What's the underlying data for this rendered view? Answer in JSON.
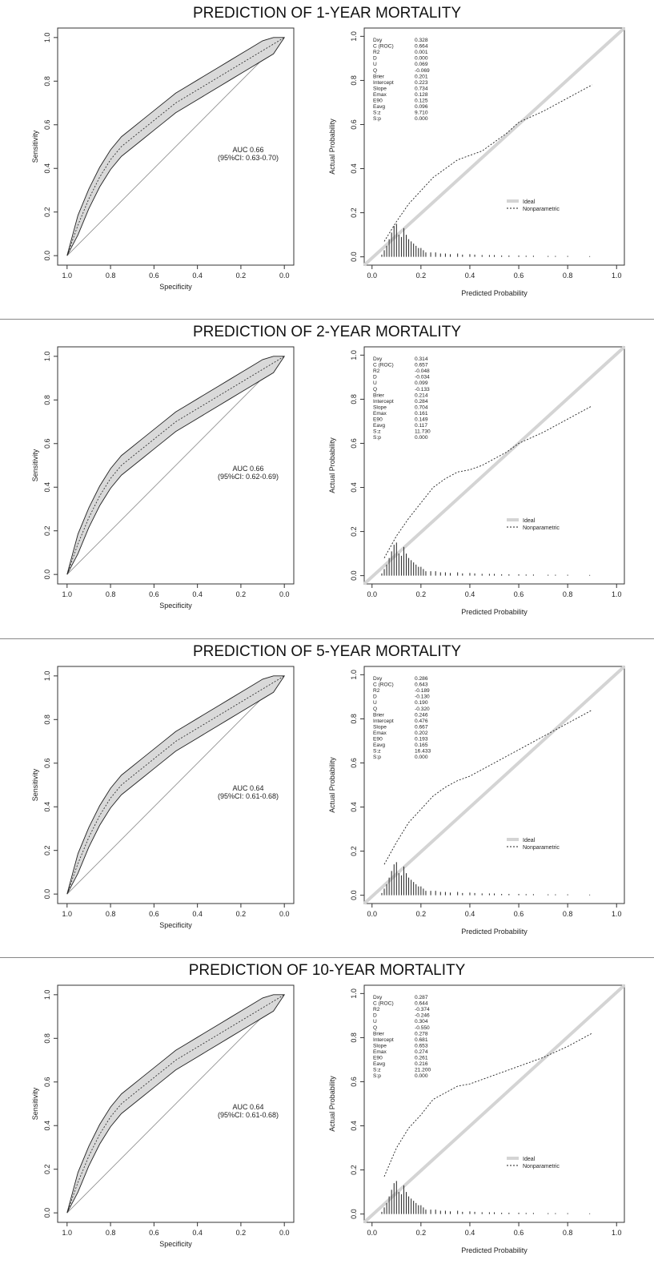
{
  "panels": [
    {
      "title": "PREDICTION OF 1-YEAR MORTALITY",
      "roc": {
        "auc_label": "AUC 0.66",
        "ci_label": "(95%CI: 0.63-0.70)"
      },
      "stats": [
        [
          "Dxy",
          "0.328"
        ],
        [
          "C (ROC)",
          "0.664"
        ],
        [
          "R2",
          "0.001"
        ],
        [
          "D",
          "0.000"
        ],
        [
          "U",
          "0.069"
        ],
        [
          "Q",
          "-0.069"
        ],
        [
          "Brier",
          "0.201"
        ],
        [
          "Intercept",
          "0.223"
        ],
        [
          "Slope",
          "0.734"
        ],
        [
          "Emax",
          "0.128"
        ],
        [
          "E90",
          "0.125"
        ],
        [
          "Eavg",
          "0.096"
        ],
        [
          "S:z",
          "9.710"
        ],
        [
          "S:p",
          "0.000"
        ]
      ],
      "calibration": {
        "pred": [
          0.05,
          0.1,
          0.15,
          0.2,
          0.25,
          0.3,
          0.35,
          0.4,
          0.45,
          0.5,
          0.55,
          0.6,
          0.7,
          0.8,
          0.9
        ],
        "actual": [
          0.07,
          0.16,
          0.24,
          0.3,
          0.36,
          0.4,
          0.44,
          0.46,
          0.48,
          0.52,
          0.56,
          0.61,
          0.66,
          0.72,
          0.78
        ]
      }
    },
    {
      "title": "PREDICTION OF 2-YEAR MORTALITY",
      "roc": {
        "auc_label": "AUC 0.66",
        "ci_label": "(95%CI: 0.62-0.69)"
      },
      "stats": [
        [
          "Dxy",
          "0.314"
        ],
        [
          "C (ROC)",
          "0.657"
        ],
        [
          "R2",
          "-0.048"
        ],
        [
          "D",
          "-0.034"
        ],
        [
          "U",
          "0.099"
        ],
        [
          "Q",
          "-0.133"
        ],
        [
          "Brier",
          "0.214"
        ],
        [
          "Intercept",
          "0.284"
        ],
        [
          "Slope",
          "0.704"
        ],
        [
          "Emax",
          "0.161"
        ],
        [
          "E90",
          "0.149"
        ],
        [
          "Eavg",
          "0.117"
        ],
        [
          "S:z",
          "11.730"
        ],
        [
          "S:p",
          "0.000"
        ]
      ],
      "calibration": {
        "pred": [
          0.05,
          0.1,
          0.15,
          0.2,
          0.25,
          0.3,
          0.35,
          0.4,
          0.45,
          0.5,
          0.55,
          0.6,
          0.7,
          0.8,
          0.9
        ],
        "actual": [
          0.08,
          0.18,
          0.26,
          0.33,
          0.4,
          0.44,
          0.47,
          0.48,
          0.5,
          0.53,
          0.56,
          0.6,
          0.65,
          0.71,
          0.77
        ]
      }
    },
    {
      "title": "PREDICTION OF 5-YEAR MORTALITY",
      "roc": {
        "auc_label": "AUC 0.64",
        "ci_label": "(95%CI: 0.61-0.68)"
      },
      "stats": [
        [
          "Dxy",
          "0.286"
        ],
        [
          "C (ROC)",
          "0.643"
        ],
        [
          "R2",
          "-0.189"
        ],
        [
          "D",
          "-0.130"
        ],
        [
          "U",
          "0.190"
        ],
        [
          "Q",
          "-0.320"
        ],
        [
          "Brier",
          "0.246"
        ],
        [
          "Intercept",
          "0.476"
        ],
        [
          "Slope",
          "0.667"
        ],
        [
          "Emax",
          "0.202"
        ],
        [
          "E90",
          "0.193"
        ],
        [
          "Eavg",
          "0.165"
        ],
        [
          "S:z",
          "16.433"
        ],
        [
          "S:p",
          "0.000"
        ]
      ],
      "calibration": {
        "pred": [
          0.05,
          0.1,
          0.15,
          0.2,
          0.25,
          0.3,
          0.35,
          0.4,
          0.45,
          0.5,
          0.55,
          0.6,
          0.7,
          0.8,
          0.9
        ],
        "actual": [
          0.14,
          0.24,
          0.33,
          0.39,
          0.45,
          0.49,
          0.52,
          0.54,
          0.57,
          0.6,
          0.63,
          0.66,
          0.72,
          0.78,
          0.84
        ]
      }
    },
    {
      "title": "PREDICTION OF 10-YEAR MORTALITY",
      "roc": {
        "auc_label": "AUC 0.64",
        "ci_label": "(95%CI: 0.61-0.68)"
      },
      "stats": [
        [
          "Dxy",
          "0.287"
        ],
        [
          "C (ROC)",
          "0.644"
        ],
        [
          "R2",
          "-0.374"
        ],
        [
          "D",
          "-0.246"
        ],
        [
          "U",
          "0.304"
        ],
        [
          "Q",
          "-0.550"
        ],
        [
          "Brier",
          "0.278"
        ],
        [
          "Intercept",
          "0.681"
        ],
        [
          "Slope",
          "0.653"
        ],
        [
          "Emax",
          "0.274"
        ],
        [
          "E90",
          "0.261"
        ],
        [
          "Eavg",
          "0.216"
        ],
        [
          "S:z",
          "21.200"
        ],
        [
          "S:p",
          "0.000"
        ]
      ],
      "calibration": {
        "pred": [
          0.05,
          0.1,
          0.15,
          0.2,
          0.25,
          0.3,
          0.35,
          0.4,
          0.45,
          0.5,
          0.55,
          0.6,
          0.7,
          0.8,
          0.9
        ],
        "actual": [
          0.17,
          0.3,
          0.39,
          0.45,
          0.52,
          0.55,
          0.58,
          0.59,
          0.61,
          0.63,
          0.65,
          0.67,
          0.71,
          0.76,
          0.82
        ]
      }
    }
  ],
  "roc_axes": {
    "xlabel": "Specificity",
    "ylabel": "Sensitivity",
    "xticks": [
      "1.0",
      "0.8",
      "0.6",
      "0.4",
      "0.2",
      "0.0"
    ],
    "yticks": [
      "0.0",
      "0.2",
      "0.4",
      "0.6",
      "0.8",
      "1.0"
    ]
  },
  "cal_axes": {
    "xlabel": "Predicted Probability",
    "ylabel": "Actual Probability",
    "xticks": [
      "0.0",
      "0.2",
      "0.4",
      "0.6",
      "0.8",
      "1.0"
    ],
    "yticks": [
      "0.0",
      "0.2",
      "0.4",
      "0.6",
      "0.8",
      "1.0"
    ]
  },
  "legend": {
    "ideal": "Ideal",
    "nonparametric": "Nonparametric"
  },
  "chart_data": {
    "type": "line",
    "roc_curve_points": {
      "specificity": [
        1.0,
        0.95,
        0.9,
        0.85,
        0.8,
        0.75,
        0.7,
        0.65,
        0.6,
        0.55,
        0.5,
        0.45,
        0.4,
        0.35,
        0.3,
        0.25,
        0.2,
        0.15,
        0.1,
        0.05,
        0.0
      ],
      "sensitivity": [
        0.0,
        0.14,
        0.26,
        0.36,
        0.44,
        0.5,
        0.54,
        0.58,
        0.62,
        0.66,
        0.7,
        0.73,
        0.76,
        0.79,
        0.82,
        0.85,
        0.88,
        0.91,
        0.94,
        0.97,
        1.0
      ]
    },
    "histogram": {
      "pred": [
        0.04,
        0.05,
        0.06,
        0.07,
        0.08,
        0.09,
        0.1,
        0.11,
        0.12,
        0.13,
        0.14,
        0.15,
        0.16,
        0.17,
        0.18,
        0.19,
        0.2,
        0.21,
        0.22,
        0.24,
        0.26,
        0.28,
        0.3,
        0.32,
        0.35,
        0.37,
        0.4,
        0.42,
        0.45,
        0.48,
        0.5,
        0.53,
        0.56,
        0.6,
        0.63,
        0.66,
        0.72,
        0.75,
        0.8,
        0.89
      ],
      "height": [
        0.01,
        0.03,
        0.05,
        0.08,
        0.11,
        0.14,
        0.15,
        0.1,
        0.09,
        0.13,
        0.1,
        0.08,
        0.07,
        0.06,
        0.05,
        0.04,
        0.04,
        0.03,
        0.02,
        0.02,
        0.02,
        0.015,
        0.015,
        0.012,
        0.015,
        0.01,
        0.012,
        0.01,
        0.008,
        0.008,
        0.008,
        0.006,
        0.006,
        0.006,
        0.005,
        0.005,
        0.004,
        0.004,
        0.004,
        0.003
      ]
    }
  }
}
